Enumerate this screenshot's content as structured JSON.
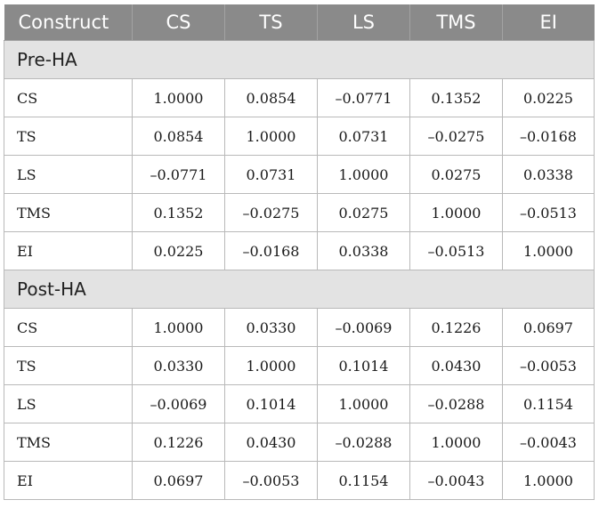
{
  "header": {
    "columns": [
      "Construct",
      "CS",
      "TS",
      "LS",
      "TMS",
      "EI"
    ]
  },
  "sections": [
    {
      "title": "Pre-HA",
      "rows": [
        {
          "label": "CS",
          "values": [
            "1.0000",
            "0.0854",
            "–0.0771",
            "0.1352",
            "0.0225"
          ]
        },
        {
          "label": "TS",
          "values": [
            "0.0854",
            "1.0000",
            "0.0731",
            "–0.0275",
            "–0.0168"
          ]
        },
        {
          "label": "LS",
          "values": [
            "–0.0771",
            "0.0731",
            "1.0000",
            "0.0275",
            "0.0338"
          ]
        },
        {
          "label": "TMS",
          "values": [
            "0.1352",
            "–0.0275",
            "0.0275",
            "1.0000",
            "–0.0513"
          ]
        },
        {
          "label": "EI",
          "values": [
            "0.0225",
            "–0.0168",
            "0.0338",
            "–0.0513",
            "1.0000"
          ]
        }
      ]
    },
    {
      "title": "Post-HA",
      "rows": [
        {
          "label": "CS",
          "values": [
            "1.0000",
            "0.0330",
            "–0.0069",
            "0.1226",
            "0.0697"
          ]
        },
        {
          "label": "TS",
          "values": [
            "0.0330",
            "1.0000",
            "0.1014",
            "0.0430",
            "–0.0053"
          ]
        },
        {
          "label": "LS",
          "values": [
            "–0.0069",
            "0.1014",
            "1.0000",
            "–0.0288",
            "0.1154"
          ]
        },
        {
          "label": "TMS",
          "values": [
            "0.1226",
            "0.0430",
            "–0.0288",
            "1.0000",
            "–0.0043"
          ]
        },
        {
          "label": "EI",
          "values": [
            "0.0697",
            "–0.0053",
            "0.1154",
            "–0.0043",
            "1.0000"
          ]
        }
      ]
    }
  ]
}
